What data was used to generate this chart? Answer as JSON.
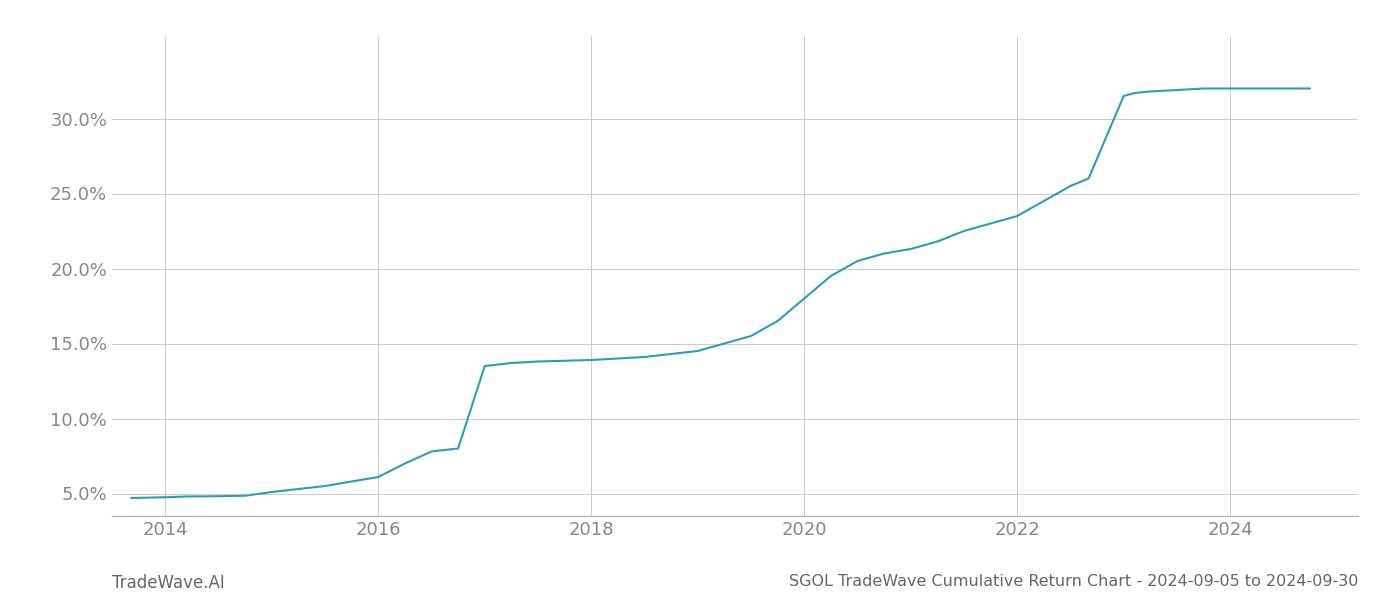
{
  "title": "SGOL TradeWave Cumulative Return Chart - 2024-09-05 to 2024-09-30",
  "watermark": "TradeWave.AI",
  "line_color": "#2b9dbf",
  "background_color": "#ffffff",
  "grid_color": "#cccccc",
  "x_years": [
    2013.68,
    2014.0,
    2014.2,
    2014.5,
    2014.75,
    2015.0,
    2015.25,
    2015.5,
    2015.75,
    2016.0,
    2016.25,
    2016.5,
    2016.75,
    2017.0,
    2017.25,
    2017.5,
    2017.75,
    2018.0,
    2018.25,
    2018.5,
    2018.75,
    2019.0,
    2019.25,
    2019.5,
    2019.75,
    2020.0,
    2020.25,
    2020.5,
    2020.75,
    2021.0,
    2021.25,
    2021.5,
    2021.75,
    2022.0,
    2022.25,
    2022.5,
    2022.67,
    2023.0,
    2023.1,
    2023.25,
    2023.5,
    2023.75,
    2024.0,
    2024.5,
    2024.75
  ],
  "y_values": [
    4.7,
    4.75,
    4.8,
    4.82,
    4.85,
    5.1,
    5.3,
    5.5,
    5.8,
    6.1,
    7.0,
    7.8,
    8.0,
    13.5,
    13.7,
    13.8,
    13.85,
    13.9,
    14.0,
    14.1,
    14.3,
    14.5,
    15.0,
    15.5,
    16.5,
    18.0,
    19.5,
    20.5,
    21.0,
    21.3,
    21.8,
    22.5,
    23.0,
    23.5,
    24.5,
    25.5,
    26.0,
    31.5,
    31.7,
    31.8,
    31.9,
    32.0,
    32.0,
    32.0,
    32.0
  ],
  "xlim": [
    2013.5,
    2025.2
  ],
  "ylim": [
    3.5,
    35.5
  ],
  "yticks": [
    5.0,
    10.0,
    15.0,
    20.0,
    25.0,
    30.0
  ],
  "ytick_labels": [
    "5.0%",
    "10.0%",
    "15.0%",
    "20.0%",
    "25.0%",
    "30.0%"
  ],
  "xticks": [
    2014,
    2016,
    2018,
    2020,
    2022,
    2024
  ],
  "xtick_labels": [
    "2014",
    "2016",
    "2018",
    "2020",
    "2022",
    "2024"
  ],
  "tick_fontsize": 13,
  "title_fontsize": 11.5,
  "watermark_fontsize": 12
}
